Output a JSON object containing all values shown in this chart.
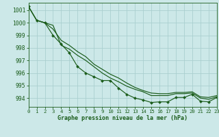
{
  "title": "Graphe pression niveau de la mer (hPa)",
  "bg_color": "#cce8e8",
  "grid_color": "#aacfcf",
  "line_color": "#1a5c1a",
  "xlim": [
    0,
    23
  ],
  "ylim": [
    993.3,
    1001.6
  ],
  "yticks": [
    994,
    995,
    996,
    997,
    998,
    999,
    1000,
    1001
  ],
  "xticks": [
    0,
    1,
    2,
    3,
    4,
    5,
    6,
    7,
    8,
    9,
    10,
    11,
    12,
    13,
    14,
    15,
    16,
    17,
    18,
    19,
    20,
    21,
    22,
    23
  ],
  "series": [
    {
      "y": [
        1001.3,
        1000.2,
        1000.0,
        999.0,
        998.3,
        997.6,
        996.5,
        996.0,
        995.7,
        995.4,
        995.4,
        994.8,
        994.3,
        994.0,
        993.85,
        993.65,
        993.7,
        993.7,
        994.05,
        994.05,
        994.3,
        993.75,
        993.7,
        994.05
      ],
      "marker": true,
      "marker_indices": [
        0,
        1,
        2,
        3,
        4,
        5,
        6,
        7,
        8,
        9,
        10,
        11,
        12,
        13,
        14,
        15,
        16,
        17,
        18,
        19,
        20,
        21,
        22,
        23
      ]
    },
    {
      "y": [
        1001.3,
        1000.2,
        1000.0,
        999.5,
        998.6,
        998.2,
        997.7,
        997.3,
        996.7,
        996.3,
        995.9,
        995.6,
        995.2,
        994.85,
        994.6,
        994.4,
        994.35,
        994.35,
        994.45,
        994.45,
        994.5,
        994.1,
        994.05,
        994.2
      ],
      "marker": false
    },
    {
      "y": [
        1001.3,
        1000.2,
        1000.0,
        999.8,
        998.2,
        997.9,
        997.4,
        997.0,
        996.5,
        996.0,
        995.6,
        995.3,
        994.95,
        994.7,
        994.5,
        994.2,
        994.2,
        994.2,
        994.35,
        994.35,
        994.4,
        994.0,
        993.9,
        994.1
      ],
      "marker": false
    }
  ],
  "xlabel_size": 6.0,
  "tick_size": 5.2,
  "ytick_size": 5.8
}
